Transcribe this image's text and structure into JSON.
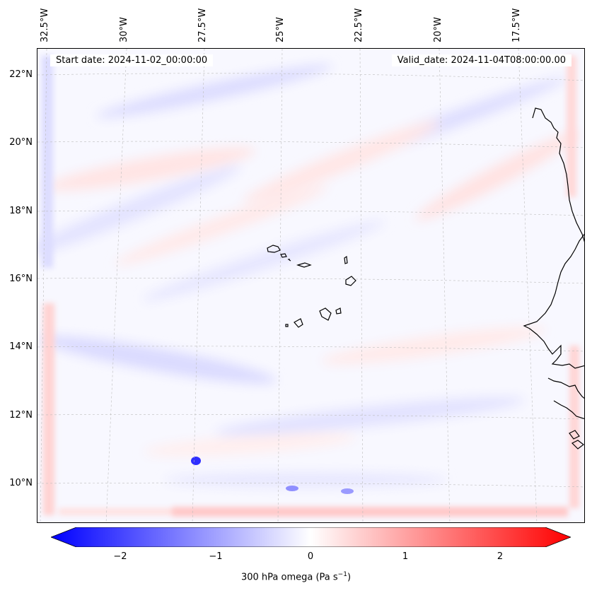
{
  "map": {
    "start_date": "Start date: 2024-11-02_00:00:00",
    "valid_date": "Valid_date: 2024-11-04T08:00:00.00",
    "lon_labels": [
      "32.5°W",
      "30°W",
      "27.5°W",
      "25°W",
      "22.5°W",
      "20°W",
      "17.5°W"
    ],
    "lat_labels": [
      "22°N",
      "20°N",
      "18°N",
      "16°N",
      "14°N",
      "12°N",
      "10°N"
    ],
    "colors": {
      "negative": "#0000ff",
      "positive": "#ff0000",
      "neutral": "#ffffff",
      "coastline": "#000000"
    },
    "features": [
      "coastline",
      "cape-verde-islands",
      "west-africa-coast"
    ]
  },
  "colorbar": {
    "label": "300 hPa omega (Pa s",
    "label_sup": "−1",
    "label_tail": ")",
    "ticks": [
      "−2",
      "−1",
      "0",
      "1",
      "2"
    ],
    "range": [
      -2.75,
      2.75
    ],
    "cmap": "bwr"
  }
}
